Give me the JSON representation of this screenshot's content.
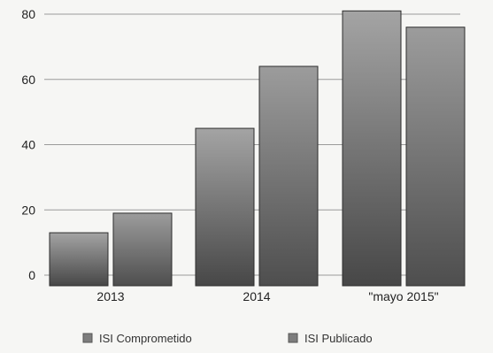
{
  "chart_data": {
    "type": "bar",
    "title": "",
    "xlabel": "",
    "ylabel": "",
    "categories": [
      "2013",
      "2014",
      "\"mayo 2015\""
    ],
    "series": [
      {
        "name": "ISI Comprometido",
        "values": [
          13,
          45,
          81
        ]
      },
      {
        "name": "ISI Publicado",
        "values": [
          19,
          64,
          76
        ]
      }
    ],
    "ylim": [
      0,
      80
    ],
    "yticks": [
      "0",
      "20",
      "40",
      "60",
      "80"
    ],
    "grid": true,
    "legend": "bottom",
    "colors": {
      "bar_dark": "#4a4a4a",
      "bar_light": "#9a9a9a",
      "grid": "#9a9a9a",
      "legend_swatch": "#7d7d7d"
    }
  }
}
